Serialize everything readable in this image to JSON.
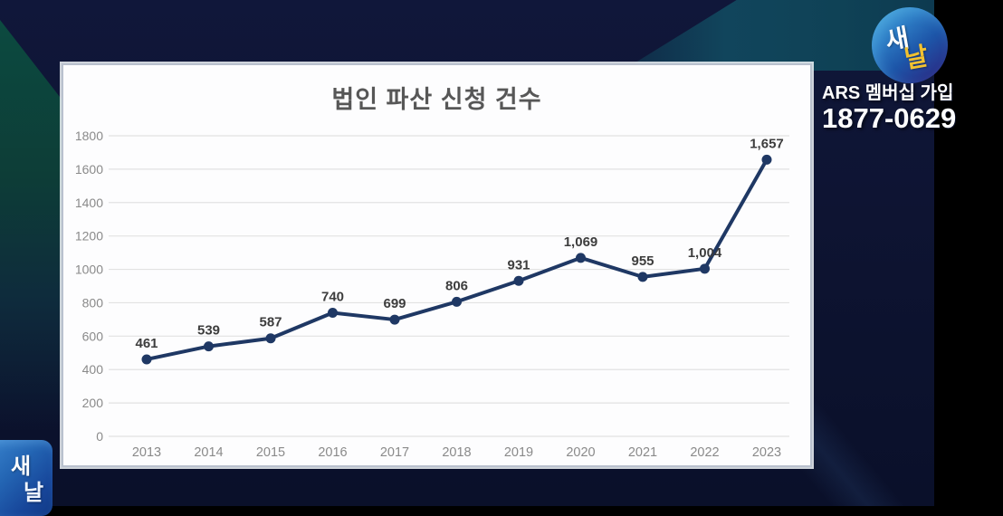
{
  "chart_data": {
    "type": "line",
    "title": "법인 파산 신청 건수",
    "categories": [
      "2013",
      "2014",
      "2015",
      "2016",
      "2017",
      "2018",
      "2019",
      "2020",
      "2021",
      "2022",
      "2023"
    ],
    "values": [
      461,
      539,
      587,
      740,
      699,
      806,
      931,
      1069,
      955,
      1004,
      1657
    ],
    "point_labels": [
      "461",
      "539",
      "587",
      "740",
      "699",
      "806",
      "931",
      "1,069",
      "955",
      "1,004",
      "1,657"
    ],
    "xlabel": "",
    "ylabel": "",
    "ylim": [
      0,
      1800
    ],
    "ytick_step": 200,
    "grid": true,
    "legend": "none",
    "line_color": "#1f3864",
    "marker_color": "#1f3864",
    "grid_color": "#e2e2e2",
    "tick_color": "#8a8a8a",
    "point_label_color": "#3d3d3d"
  },
  "overlay": {
    "logo_top_right": {
      "first_syllable": "새",
      "second_syllable": "날"
    },
    "logo_bottom_left": {
      "first_syllable": "새",
      "second_syllable": "날"
    },
    "ars_membership_label": "ARS 멤버십 가입",
    "ars_phone_number": "1877-0629"
  },
  "colors": {
    "background_navy": "#0d1330",
    "teal_wedge": "#0c4a40",
    "panel_background": "#fdfdfe",
    "logo_yellow": "#f2c230"
  }
}
